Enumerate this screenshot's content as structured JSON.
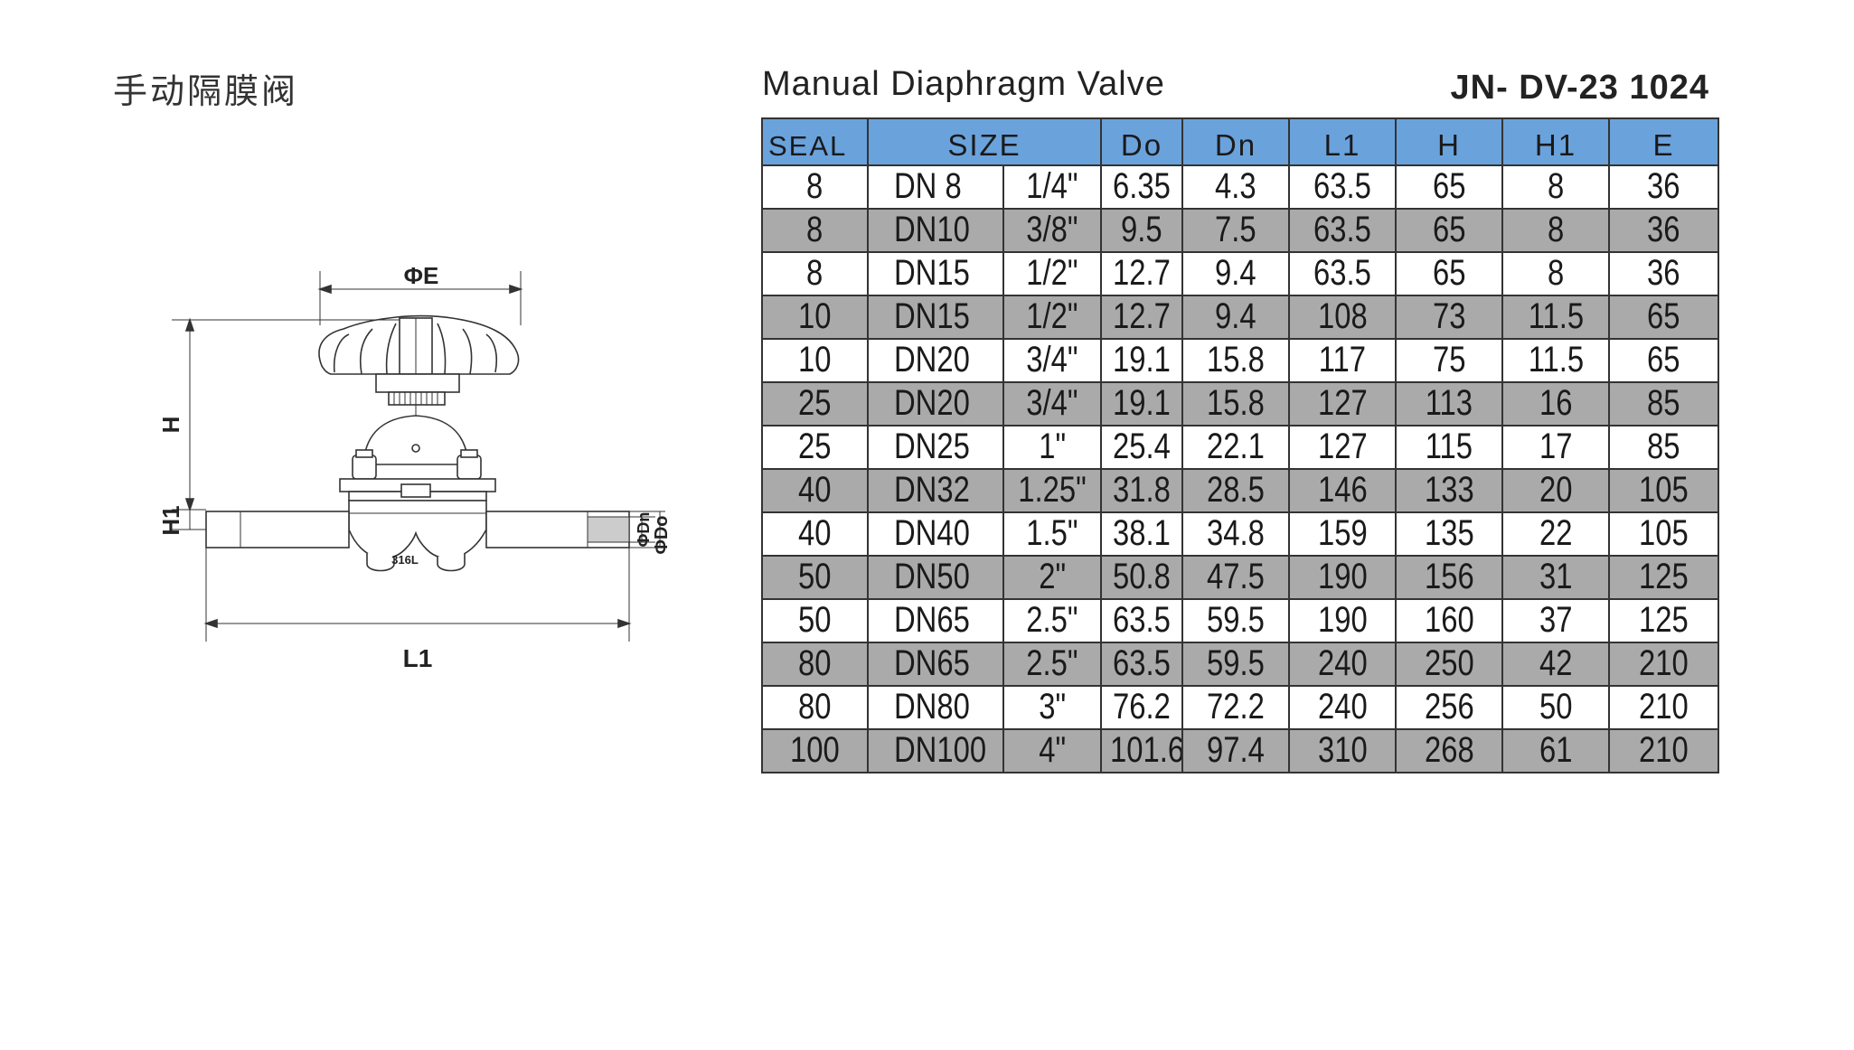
{
  "header": {
    "cn_title": "手动隔膜阀",
    "en_title": "Manual Diaphragm Valve",
    "model_code": "JN- DV-23 1024"
  },
  "drawing": {
    "label_diameter": "ΦE",
    "label_height": "H",
    "label_h1": "H1",
    "label_length": "L1",
    "label_dn": "ΦDn",
    "label_do": "ΦDo",
    "label_material": "316L"
  },
  "table": {
    "headers": [
      "SEAL",
      "SIZE",
      "Do",
      "Dn",
      "L1",
      "H",
      "H1",
      "E"
    ],
    "rows": [
      [
        "8",
        "DN 8",
        "1/4\"",
        "6.35",
        "4.3",
        "63.5",
        "65",
        "8",
        "36"
      ],
      [
        "8",
        "DN10",
        "3/8\"",
        "9.5",
        "7.5",
        "63.5",
        "65",
        "8",
        "36"
      ],
      [
        "8",
        "DN15",
        "1/2\"",
        "12.7",
        "9.4",
        "63.5",
        "65",
        "8",
        "36"
      ],
      [
        "10",
        "DN15",
        "1/2\"",
        "12.7",
        "9.4",
        "108",
        "73",
        "11.5",
        "65"
      ],
      [
        "10",
        "DN20",
        "3/4\"",
        "19.1",
        "15.8",
        "117",
        "75",
        "11.5",
        "65"
      ],
      [
        "25",
        "DN20",
        "3/4\"",
        "19.1",
        "15.8",
        "127",
        "113",
        "16",
        "85"
      ],
      [
        "25",
        "DN25",
        "1\"",
        "25.4",
        "22.1",
        "127",
        "115",
        "17",
        "85"
      ],
      [
        "40",
        "DN32",
        "1.25\"",
        "31.8",
        "28.5",
        "146",
        "133",
        "20",
        "105"
      ],
      [
        "40",
        "DN40",
        "1.5\"",
        "38.1",
        "34.8",
        "159",
        "135",
        "22",
        "105"
      ],
      [
        "50",
        "DN50",
        "2\"",
        "50.8",
        "47.5",
        "190",
        "156",
        "31",
        "125"
      ],
      [
        "50",
        "DN65",
        "2.5\"",
        "63.5",
        "59.5",
        "190",
        "160",
        "37",
        "125"
      ],
      [
        "80",
        "DN65",
        "2.5\"",
        "63.5",
        "59.5",
        "240",
        "250",
        "42",
        "210"
      ],
      [
        "80",
        "DN80",
        "3\"",
        "76.2",
        "72.2",
        "240",
        "256",
        "50",
        "210"
      ],
      [
        "100",
        "DN100",
        "4\"",
        "101.6",
        "97.4",
        "310",
        "268",
        "61",
        "210"
      ]
    ]
  },
  "colors": {
    "header_bg": "#6aa2dc",
    "shaded_row_bg": "#aaaaaa",
    "border": "#333333"
  }
}
